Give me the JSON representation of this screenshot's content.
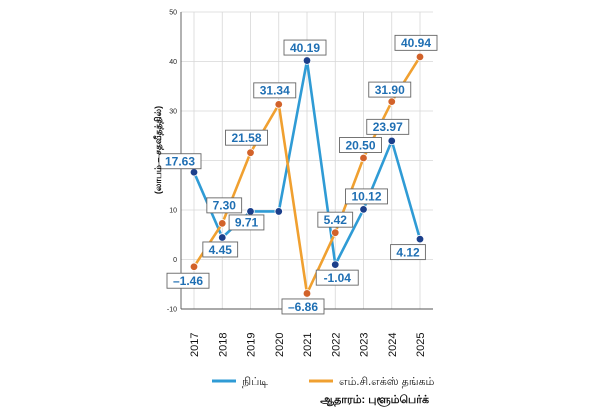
{
  "chart_data": {
    "type": "line",
    "x": [
      "2017",
      "2018",
      "2019",
      "2020",
      "2021",
      "2022",
      "2023",
      "2024",
      "2025"
    ],
    "ylabel": "(லாபம் – சதவீதத்தில்)",
    "ylim": [
      -10,
      50
    ],
    "yticks": [
      -10,
      0,
      10,
      20,
      30,
      40,
      50
    ],
    "grid": true,
    "legend_position": "bottom",
    "source": "ஆதாரம்: புளூம்பெர்க்",
    "series": [
      {
        "name": "நிப்டி",
        "color": "#2f9bd5",
        "marker_color": "#1b3f8b",
        "values": [
          17.63,
          4.45,
          9.71,
          9.71,
          40.19,
          -1.04,
          10.12,
          23.97,
          4.12
        ],
        "labels": [
          "17.63",
          "4.45",
          "9.71",
          "",
          "40.19",
          "-1.04",
          "10.12",
          "23.97",
          "4.12"
        ]
      },
      {
        "name": "எம்.சி.எக்ஸ் தங்கம்",
        "color": "#f0a030",
        "marker_color": "#d2622a",
        "values": [
          -1.46,
          7.3,
          21.58,
          31.34,
          -6.86,
          5.42,
          20.5,
          31.9,
          40.94
        ],
        "labels": [
          "–1.46",
          "7.30",
          "21.58",
          "31.34",
          "–6.86",
          "5.42",
          "20.50",
          "31.90",
          "40.94"
        ]
      }
    ]
  }
}
